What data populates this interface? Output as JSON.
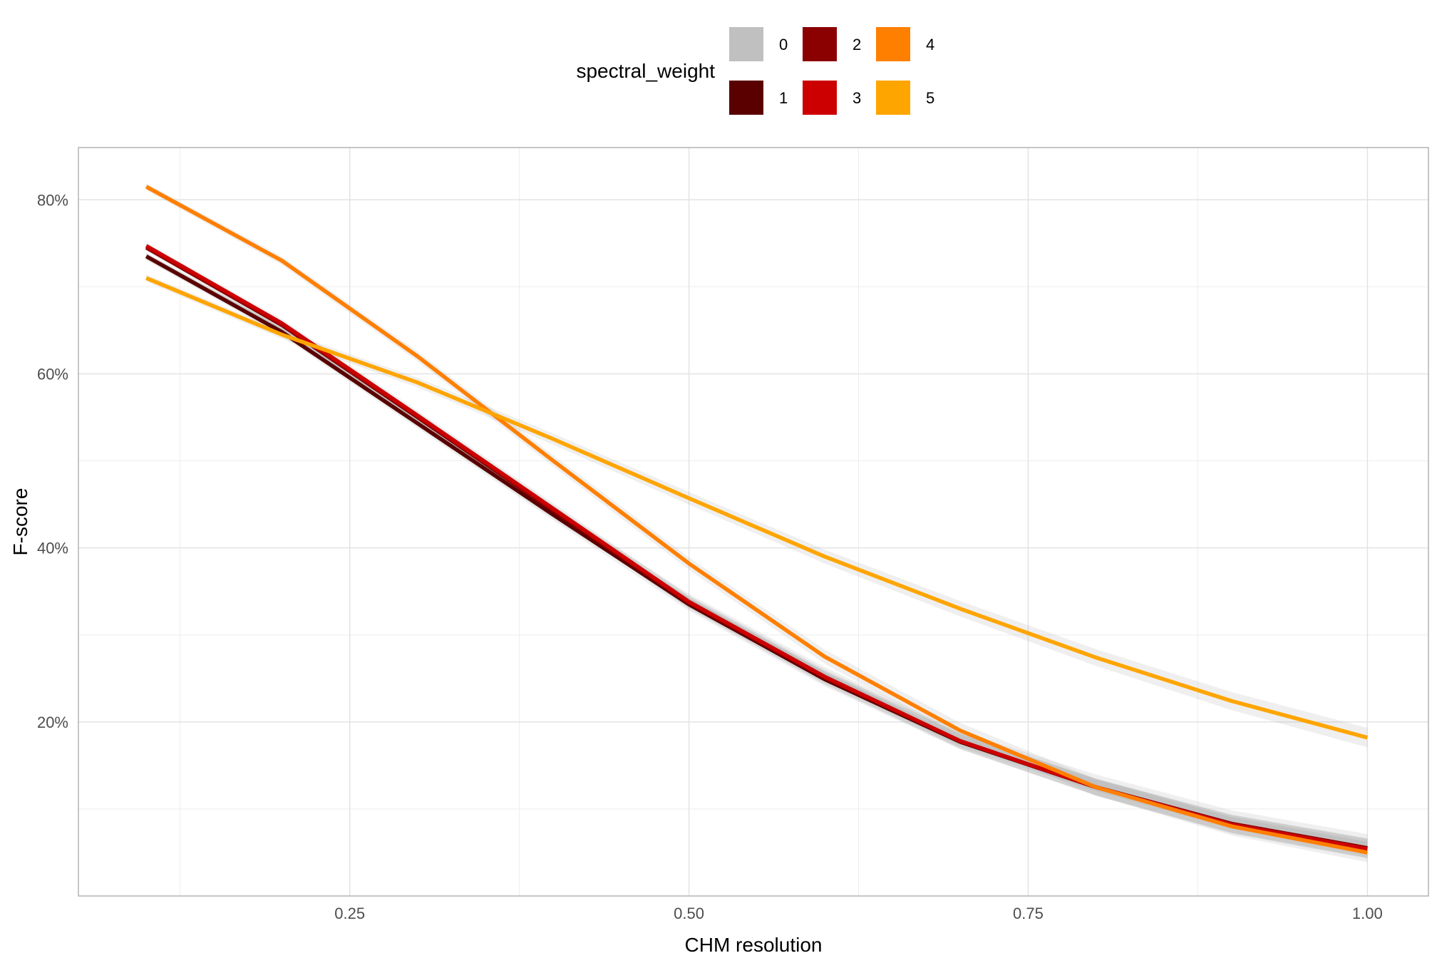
{
  "chart_data": {
    "type": "line",
    "xlabel": "CHM resolution",
    "ylabel": "F-score",
    "xlim": [
      0.05,
      1.045
    ],
    "ylim": [
      0.0,
      0.86
    ],
    "x_ticks": [
      0.25,
      0.5,
      0.75,
      1.0
    ],
    "x_tick_labels": [
      "0.25",
      "0.50",
      "0.75",
      "1.00"
    ],
    "y_ticks": [
      0.2,
      0.4,
      0.6,
      0.8
    ],
    "y_tick_labels": [
      "20%",
      "40%",
      "60%",
      "80%"
    ],
    "grid": true,
    "legend": {
      "title": "spectral_weight",
      "position": "top"
    },
    "x": [
      0.1,
      0.2,
      0.3,
      0.4,
      0.5,
      0.6,
      0.7,
      0.8,
      0.9,
      1.0
    ],
    "series": [
      {
        "name": "0",
        "color": "#c0c0c0",
        "values": [
          0.735,
          0.65,
          0.545,
          0.44,
          0.34,
          0.255,
          0.18,
          0.13,
          0.088,
          0.06
        ]
      },
      {
        "name": "1",
        "color": "#5a0000",
        "values": [
          0.735,
          0.648,
          0.543,
          0.438,
          0.335,
          0.249,
          0.177,
          0.125,
          0.083,
          0.055
        ]
      },
      {
        "name": "2",
        "color": "#8b0000",
        "values": [
          0.745,
          0.656,
          0.55,
          0.443,
          0.337,
          0.251,
          0.178,
          0.125,
          0.083,
          0.055
        ]
      },
      {
        "name": "3",
        "color": "#cc0000",
        "values": [
          0.747,
          0.658,
          0.552,
          0.445,
          0.338,
          0.252,
          0.178,
          0.125,
          0.082,
          0.054
        ]
      },
      {
        "name": "4",
        "color": "#ff7f00",
        "values": [
          0.815,
          0.73,
          0.62,
          0.5,
          0.382,
          0.275,
          0.19,
          0.125,
          0.08,
          0.05
        ]
      },
      {
        "name": "5",
        "color": "#ffa500",
        "values": [
          0.71,
          0.645,
          0.59,
          0.525,
          0.457,
          0.39,
          0.33,
          0.274,
          0.224,
          0.182
        ]
      }
    ]
  }
}
